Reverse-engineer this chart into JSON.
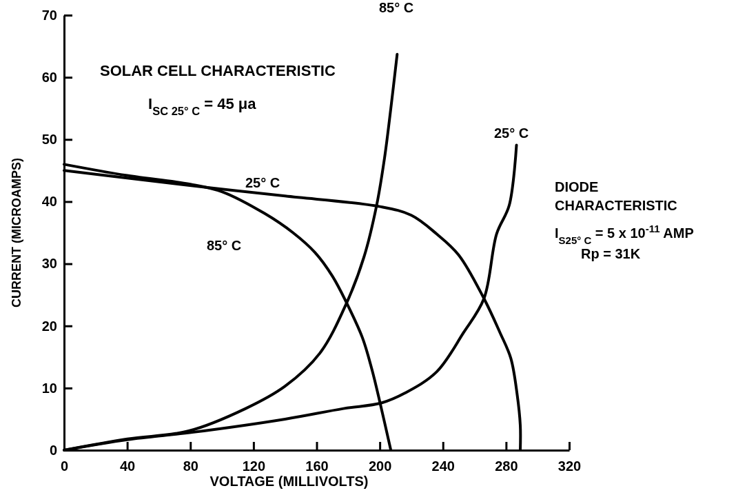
{
  "chart_data": {
    "type": "line",
    "xlabel": "VOLTAGE (MILLIVOLTS)",
    "ylabel": "CURRENT (MICROAMPS)",
    "xlim": [
      0,
      320
    ],
    "xticks": [
      0,
      40,
      80,
      120,
      160,
      200,
      240,
      280,
      320
    ],
    "ylim": [
      0,
      70
    ],
    "yticks": [
      0,
      10,
      20,
      30,
      40,
      50,
      60,
      70
    ],
    "grid": false,
    "marker": "none",
    "line_style": "solid",
    "series": [
      {
        "color": "#000000",
        "x": [
          0,
          40,
          90,
          140,
          200,
          220,
          236,
          250,
          266,
          276,
          283,
          287,
          289,
          289
        ],
        "values": [
          45,
          43.8,
          42.3,
          40.9,
          39.2,
          37.8,
          34.8,
          31.4,
          24.4,
          19,
          14.8,
          9,
          4,
          0
        ]
      },
      {
        "color": "#000000",
        "x": [
          0,
          40,
          80,
          100,
          127,
          145,
          159,
          170,
          179,
          189,
          195,
          200,
          207
        ],
        "values": [
          46,
          44.2,
          42.8,
          41.6,
          38.1,
          35,
          31.8,
          28,
          23.7,
          18.1,
          13,
          7.8,
          0
        ]
      },
      {
        "color": "#000000",
        "x": [
          0,
          40,
          79,
          115,
          140,
          162,
          179,
          190,
          198,
          203,
          207,
          211
        ],
        "values": [
          0,
          1.8,
          3.1,
          6.7,
          10.3,
          15.6,
          23.7,
          31.1,
          39.4,
          47,
          55,
          63.7
        ]
      },
      {
        "color": "#000000",
        "x": [
          0,
          40,
          82,
          140,
          177,
          201,
          216,
          236,
          253,
          266,
          274,
          282,
          286.6
        ],
        "values": [
          0,
          1.7,
          2.9,
          5,
          6.7,
          7.6,
          9.2,
          12.6,
          18.9,
          24.4,
          34.8,
          39.4,
          49.1
        ]
      }
    ],
    "annotations": [
      "SOLAR CELL CHARACTERISTIC",
      "I$_{SC 25° C}$ = 45 μa",
      "DIODE",
      "CHARACTERISTIC",
      "I$_{S25° C}$ = 5 x 10$^{-11}$ AMP",
      "Rp = 31K",
      "25° C",
      "85° C",
      "85° C",
      "25° C"
    ]
  }
}
